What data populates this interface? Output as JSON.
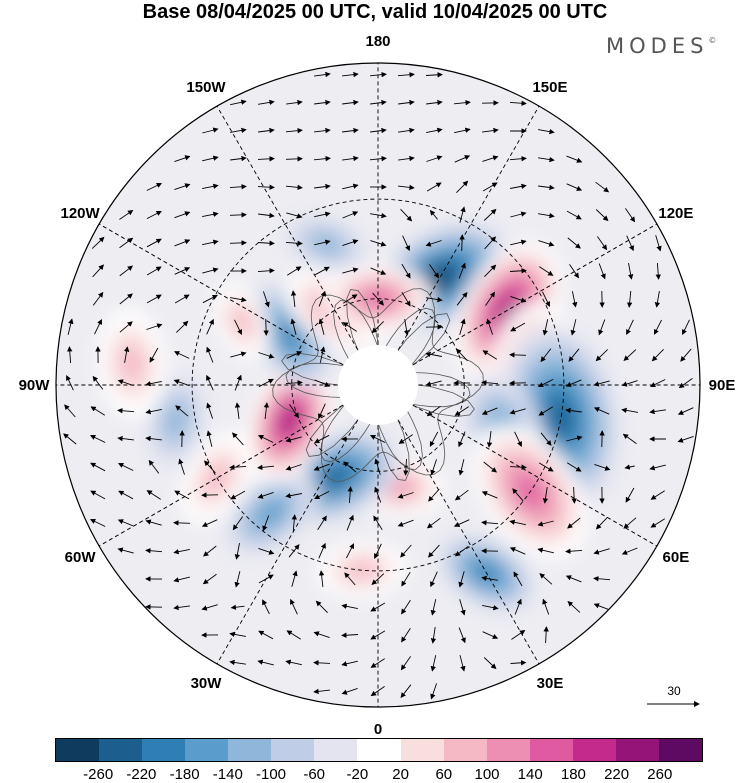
{
  "title": "Base 08/04/2025 00 UTC, valid 10/04/2025 00 UTC",
  "brand": "MODES",
  "brand_mark": "©",
  "longitude_labels": [
    "180",
    "150E",
    "120E",
    "90E",
    "60E",
    "30E",
    "0",
    "30W",
    "60W",
    "90W",
    "120W",
    "150W"
  ],
  "reference_vector": "30",
  "colorbar": {
    "colors": [
      "#0f3b5f",
      "#1c5e8e",
      "#2f7fb4",
      "#5a9ccb",
      "#8eb7da",
      "#bfcde6",
      "#e4e4f0",
      "#ffffff",
      "#f9dede",
      "#f4b9c5",
      "#ec8fb2",
      "#df5aa0",
      "#c42a8c",
      "#951478",
      "#5e0a62"
    ],
    "tick_labels": [
      "-260",
      "-220",
      "-180",
      "-140",
      "-100",
      "-60",
      "-20",
      "20",
      "60",
      "100",
      "140",
      "180",
      "220",
      "260"
    ]
  },
  "anomalies": [
    {
      "lon": -150,
      "lat": 48,
      "r": 78,
      "v": -230
    },
    {
      "lon": -120,
      "lat": 40,
      "r": 74,
      "v": 250
    },
    {
      "lon": -95,
      "lat": 38,
      "r": 70,
      "v": 160
    },
    {
      "lon": -80,
      "lat": 30,
      "r": 95,
      "v": -200
    },
    {
      "lon": -70,
      "lat": 45,
      "r": 60,
      "v": -120
    },
    {
      "lon": -55,
      "lat": 30,
      "r": 75,
      "v": 150
    },
    {
      "lon": -30,
      "lat": 22,
      "r": 55,
      "v": -140
    },
    {
      "lon": -10,
      "lat": 55,
      "r": 50,
      "v": 120
    },
    {
      "lon": 5,
      "lat": 30,
      "r": 45,
      "v": 80
    },
    {
      "lon": 25,
      "lat": 55,
      "r": 70,
      "v": -190
    },
    {
      "lon": 40,
      "lat": 35,
      "r": 55,
      "v": -110
    },
    {
      "lon": 68,
      "lat": 57,
      "r": 64,
      "v": 230
    },
    {
      "lon": 80,
      "lat": 25,
      "r": 50,
      "v": -70
    },
    {
      "lon": 95,
      "lat": 15,
      "r": 55,
      "v": 70
    },
    {
      "lon": 120,
      "lat": 55,
      "r": 60,
      "v": -170
    },
    {
      "lon": 150,
      "lat": 60,
      "r": 55,
      "v": 120
    },
    {
      "lon": 160,
      "lat": 40,
      "r": 45,
      "v": -60
    },
    {
      "lon": 180,
      "lat": 60,
      "r": 55,
      "v": 150
    },
    {
      "lon": 115,
      "lat": 40,
      "r": 40,
      "v": 60
    },
    {
      "lon": 60,
      "lat": 30,
      "r": 50,
      "v": 60
    }
  ]
}
